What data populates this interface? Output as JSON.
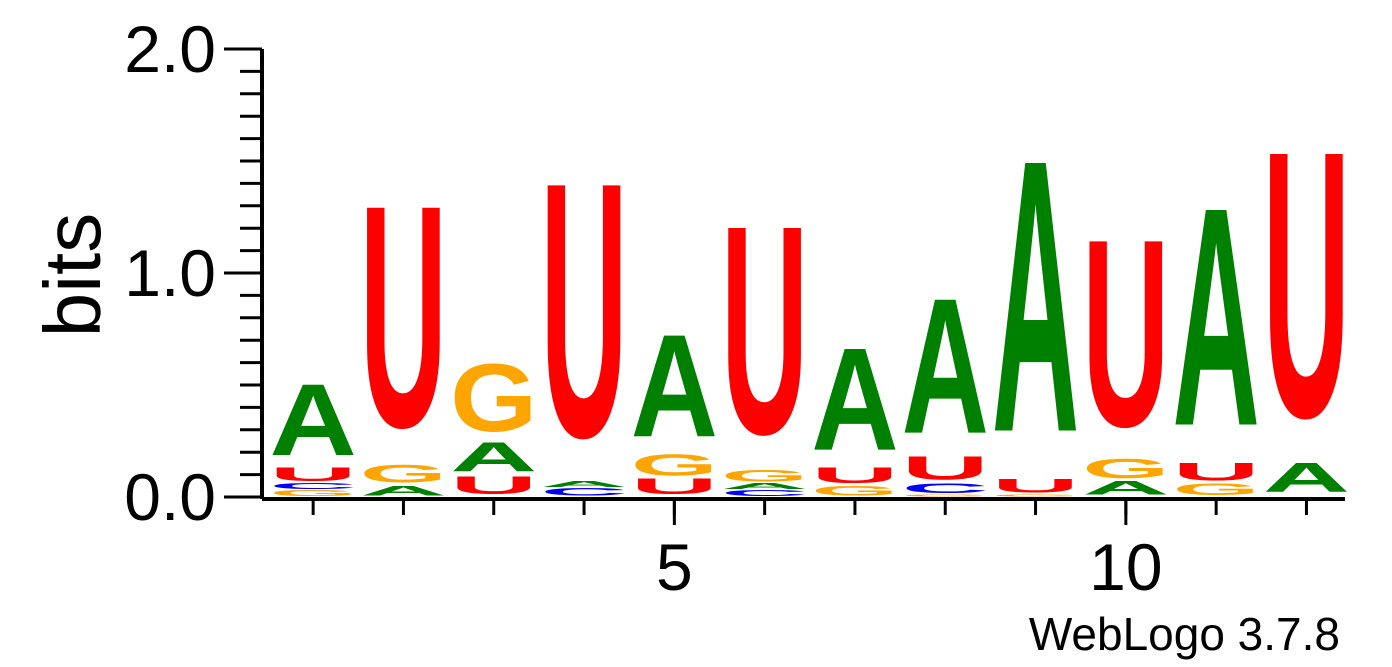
{
  "chart_data": {
    "type": "sequence-logo",
    "ylabel": "bits",
    "ylim": [
      0,
      2
    ],
    "yticks": [
      {
        "value": 0,
        "label": "0.0"
      },
      {
        "value": 1,
        "label": "1.0"
      },
      {
        "value": 2,
        "label": "2.0"
      }
    ],
    "xticks": [
      {
        "value": 5,
        "label": "5"
      },
      {
        "value": 10,
        "label": "10"
      }
    ],
    "colors": {
      "A": "#008000",
      "C": "#0000ff",
      "G": "#ffa500",
      "U": "#ff0000"
    },
    "positions": [
      {
        "pos": 1,
        "stack": [
          {
            "letter": "G",
            "bits": 0.03
          },
          {
            "letter": "C",
            "bits": 0.03
          },
          {
            "letter": "U",
            "bits": 0.07
          },
          {
            "letter": "A",
            "bits": 0.37
          }
        ]
      },
      {
        "pos": 2,
        "stack": [
          {
            "letter": "A",
            "bits": 0.05
          },
          {
            "letter": "G",
            "bits": 0.09
          },
          {
            "letter": "U",
            "bits": 1.15
          }
        ]
      },
      {
        "pos": 3,
        "stack": [
          {
            "letter": "U",
            "bits": 0.09
          },
          {
            "letter": "A",
            "bits": 0.15
          },
          {
            "letter": "G",
            "bits": 0.35
          }
        ]
      },
      {
        "pos": 4,
        "stack": [
          {
            "letter": "C",
            "bits": 0.04
          },
          {
            "letter": "A",
            "bits": 0.03
          },
          {
            "letter": "U",
            "bits": 1.32
          }
        ]
      },
      {
        "pos": 5,
        "stack": [
          {
            "letter": "U",
            "bits": 0.08
          },
          {
            "letter": "G",
            "bits": 0.11
          },
          {
            "letter": "A",
            "bits": 0.53
          }
        ]
      },
      {
        "pos": 6,
        "stack": [
          {
            "letter": "C",
            "bits": 0.03
          },
          {
            "letter": "A",
            "bits": 0.03
          },
          {
            "letter": "G",
            "bits": 0.06
          },
          {
            "letter": "U",
            "bits": 1.08
          }
        ]
      },
      {
        "pos": 7,
        "stack": [
          {
            "letter": "G",
            "bits": 0.05
          },
          {
            "letter": "U",
            "bits": 0.08
          },
          {
            "letter": "A",
            "bits": 0.53
          }
        ]
      },
      {
        "pos": 8,
        "stack": [
          {
            "letter": "G",
            "bits": 0.01
          },
          {
            "letter": "C",
            "bits": 0.05
          },
          {
            "letter": "U",
            "bits": 0.12
          },
          {
            "letter": "A",
            "bits": 0.7
          }
        ]
      },
      {
        "pos": 9,
        "stack": [
          {
            "letter": "G",
            "bits": 0.01
          },
          {
            "letter": "U",
            "bits": 0.07
          },
          {
            "letter": "A",
            "bits": 1.41
          }
        ]
      },
      {
        "pos": 10,
        "stack": [
          {
            "letter": "A",
            "bits": 0.07
          },
          {
            "letter": "G",
            "bits": 0.1
          },
          {
            "letter": "U",
            "bits": 0.97
          }
        ]
      },
      {
        "pos": 11,
        "stack": [
          {
            "letter": "G",
            "bits": 0.06
          },
          {
            "letter": "U",
            "bits": 0.09
          },
          {
            "letter": "A",
            "bits": 1.13
          }
        ]
      },
      {
        "pos": 12,
        "stack": [
          {
            "letter": "A",
            "bits": 0.15
          },
          {
            "letter": "U",
            "bits": 1.38
          }
        ]
      }
    ]
  },
  "footer": {
    "credit": "WebLogo 3.7.8"
  }
}
